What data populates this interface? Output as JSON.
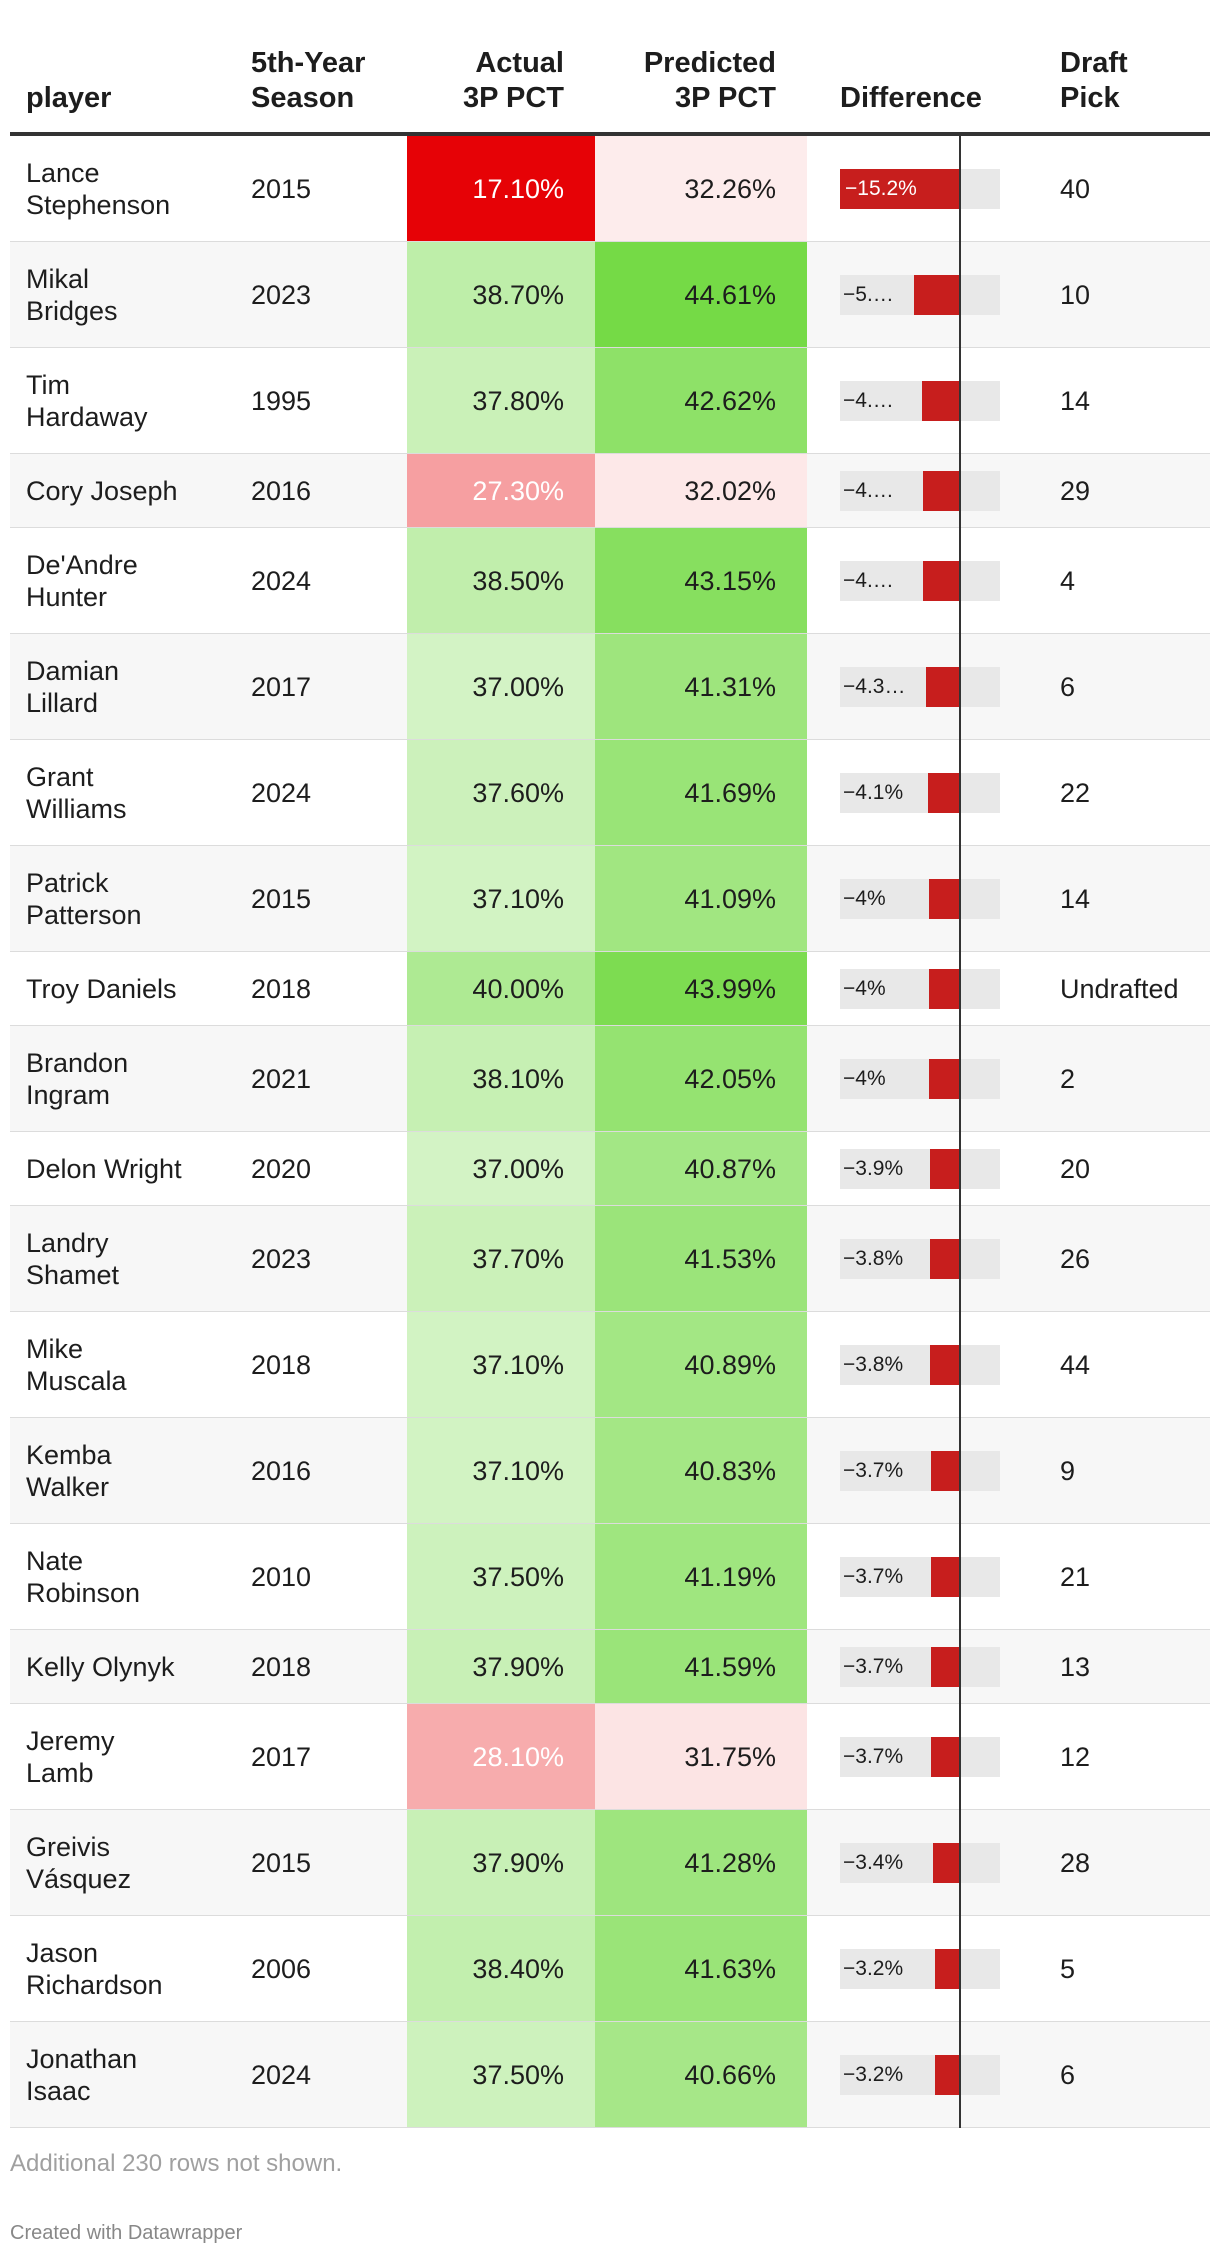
{
  "colors": {
    "negative_bar": "#c71e1d",
    "bar_background": "#e8e8e8",
    "scale_red": "#e60004",
    "scale_white": "#ffffff",
    "scale_green": "#70d940"
  },
  "table": {
    "headers": {
      "player": "player",
      "season": "5th-Year\nSeason",
      "actual": "Actual\n3P PCT",
      "predicted": "Predicted\n3P PCT",
      "difference": "Difference",
      "pick": "Draft\nPick"
    },
    "footer_note": "Additional 230 rows not shown.",
    "credit": "Created with Datawrapper"
  },
  "chart_data": {
    "type": "table",
    "columns": [
      "player",
      "5th-Year Season",
      "Actual 3P PCT",
      "Predicted 3P PCT",
      "Difference",
      "Draft Pick"
    ],
    "difference_range": [
      -15.2,
      5
    ],
    "rows": [
      {
        "player": "Lance\nStephenson",
        "season": "2015",
        "actual": 17.1,
        "actual_label": "17.10%",
        "predicted": 32.26,
        "predicted_label": "32.26%",
        "diff": -15.2,
        "diff_label": "−15.2%",
        "pick": "40"
      },
      {
        "player": "Mikal\nBridges",
        "season": "2023",
        "actual": 38.7,
        "actual_label": "38.70%",
        "predicted": 44.61,
        "predicted_label": "44.61%",
        "diff": -5.9,
        "diff_label": "−5.…",
        "pick": "10"
      },
      {
        "player": "Tim\nHardaway",
        "season": "1995",
        "actual": 37.8,
        "actual_label": "37.80%",
        "predicted": 42.62,
        "predicted_label": "42.62%",
        "diff": -4.8,
        "diff_label": "−4.…",
        "pick": "14"
      },
      {
        "player": "Cory Joseph",
        "season": "2016",
        "actual": 27.3,
        "actual_label": "27.30%",
        "predicted": 32.02,
        "predicted_label": "32.02%",
        "diff": -4.7,
        "diff_label": "−4.…",
        "pick": "29"
      },
      {
        "player": "De'Andre\nHunter",
        "season": "2024",
        "actual": 38.5,
        "actual_label": "38.50%",
        "predicted": 43.15,
        "predicted_label": "43.15%",
        "diff": -4.7,
        "diff_label": "−4.…",
        "pick": "4"
      },
      {
        "player": "Damian\nLillard",
        "season": "2017",
        "actual": 37.0,
        "actual_label": "37.00%",
        "predicted": 41.31,
        "predicted_label": "41.31%",
        "diff": -4.3,
        "diff_label": "−4.3…",
        "pick": "6"
      },
      {
        "player": "Grant\nWilliams",
        "season": "2024",
        "actual": 37.6,
        "actual_label": "37.60%",
        "predicted": 41.69,
        "predicted_label": "41.69%",
        "diff": -4.1,
        "diff_label": "−4.1%",
        "pick": "22"
      },
      {
        "player": "Patrick\nPatterson",
        "season": "2015",
        "actual": 37.1,
        "actual_label": "37.10%",
        "predicted": 41.09,
        "predicted_label": "41.09%",
        "diff": -4.0,
        "diff_label": "−4%",
        "pick": "14"
      },
      {
        "player": "Troy Daniels",
        "season": "2018",
        "actual": 40.0,
        "actual_label": "40.00%",
        "predicted": 43.99,
        "predicted_label": "43.99%",
        "diff": -4.0,
        "diff_label": "−4%",
        "pick": "Undrafted"
      },
      {
        "player": "Brandon\nIngram",
        "season": "2021",
        "actual": 38.1,
        "actual_label": "38.10%",
        "predicted": 42.05,
        "predicted_label": "42.05%",
        "diff": -4.0,
        "diff_label": "−4%",
        "pick": "2"
      },
      {
        "player": "Delon Wright",
        "season": "2020",
        "actual": 37.0,
        "actual_label": "37.00%",
        "predicted": 40.87,
        "predicted_label": "40.87%",
        "diff": -3.9,
        "diff_label": "−3.9%",
        "pick": "20"
      },
      {
        "player": "Landry\nShamet",
        "season": "2023",
        "actual": 37.7,
        "actual_label": "37.70%",
        "predicted": 41.53,
        "predicted_label": "41.53%",
        "diff": -3.8,
        "diff_label": "−3.8%",
        "pick": "26"
      },
      {
        "player": "Mike\nMuscala",
        "season": "2018",
        "actual": 37.1,
        "actual_label": "37.10%",
        "predicted": 40.89,
        "predicted_label": "40.89%",
        "diff": -3.8,
        "diff_label": "−3.8%",
        "pick": "44"
      },
      {
        "player": "Kemba\nWalker",
        "season": "2016",
        "actual": 37.1,
        "actual_label": "37.10%",
        "predicted": 40.83,
        "predicted_label": "40.83%",
        "diff": -3.7,
        "diff_label": "−3.7%",
        "pick": "9"
      },
      {
        "player": "Nate\nRobinson",
        "season": "2010",
        "actual": 37.5,
        "actual_label": "37.50%",
        "predicted": 41.19,
        "predicted_label": "41.19%",
        "diff": -3.7,
        "diff_label": "−3.7%",
        "pick": "21"
      },
      {
        "player": "Kelly Olynyk",
        "season": "2018",
        "actual": 37.9,
        "actual_label": "37.90%",
        "predicted": 41.59,
        "predicted_label": "41.59%",
        "diff": -3.7,
        "diff_label": "−3.7%",
        "pick": "13"
      },
      {
        "player": "Jeremy\nLamb",
        "season": "2017",
        "actual": 28.1,
        "actual_label": "28.10%",
        "predicted": 31.75,
        "predicted_label": "31.75%",
        "diff": -3.7,
        "diff_label": "−3.7%",
        "pick": "12"
      },
      {
        "player": "Greivis\nVásquez",
        "season": "2015",
        "actual": 37.9,
        "actual_label": "37.90%",
        "predicted": 41.28,
        "predicted_label": "41.28%",
        "diff": -3.4,
        "diff_label": "−3.4%",
        "pick": "28"
      },
      {
        "player": "Jason\nRichardson",
        "season": "2006",
        "actual": 38.4,
        "actual_label": "38.40%",
        "predicted": 41.63,
        "predicted_label": "41.63%",
        "diff": -3.2,
        "diff_label": "−3.2%",
        "pick": "5"
      },
      {
        "player": "Jonathan\nIsaac",
        "season": "2024",
        "actual": 37.5,
        "actual_label": "37.50%",
        "predicted": 40.66,
        "predicted_label": "40.66%",
        "diff": -3.2,
        "diff_label": "−3.2%",
        "pick": "6"
      }
    ]
  }
}
